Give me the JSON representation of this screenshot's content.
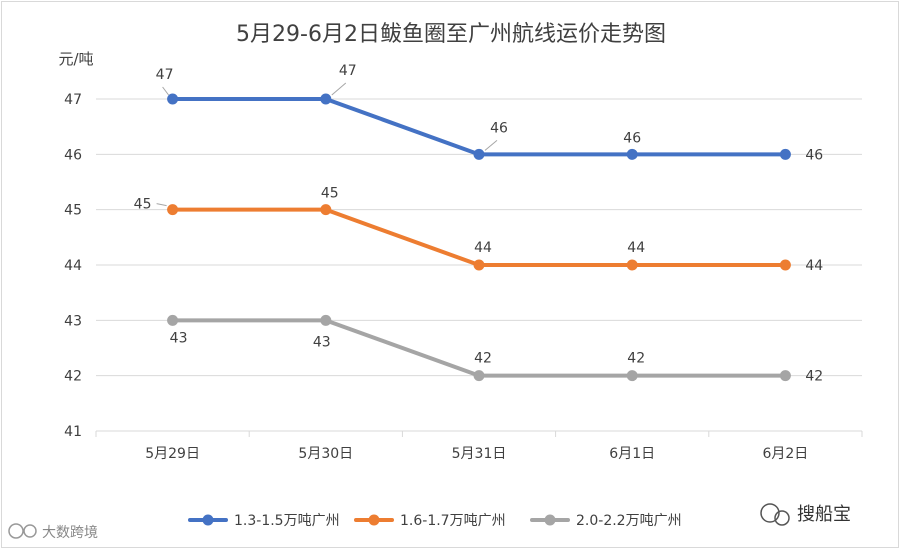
{
  "chart_data": {
    "type": "line",
    "title": "5月29-6月2日鲅鱼圈至广州航线运价走势图",
    "ylabel": "元/吨",
    "xlabel": "",
    "categories": [
      "5月29日",
      "5月30日",
      "5月31日",
      "6月1日",
      "6月2日"
    ],
    "ylim": [
      41,
      47
    ],
    "yticks": [
      41,
      42,
      43,
      44,
      45,
      46,
      47
    ],
    "grid": true,
    "legend_position": "bottom",
    "series": [
      {
        "name": "1.3-1.5万吨广州",
        "values": [
          47,
          47,
          46,
          46,
          46
        ],
        "color": "#4472c4"
      },
      {
        "name": "1.6-1.7万吨广州",
        "values": [
          45,
          45,
          44,
          44,
          44
        ],
        "color": "#ed7d31"
      },
      {
        "name": "2.0-2.2万吨广州",
        "values": [
          43,
          43,
          42,
          42,
          42
        ],
        "color": "#a5a5a5"
      }
    ]
  },
  "watermarks": {
    "right_text": "搜船宝",
    "left_text": "大数跨境"
  }
}
